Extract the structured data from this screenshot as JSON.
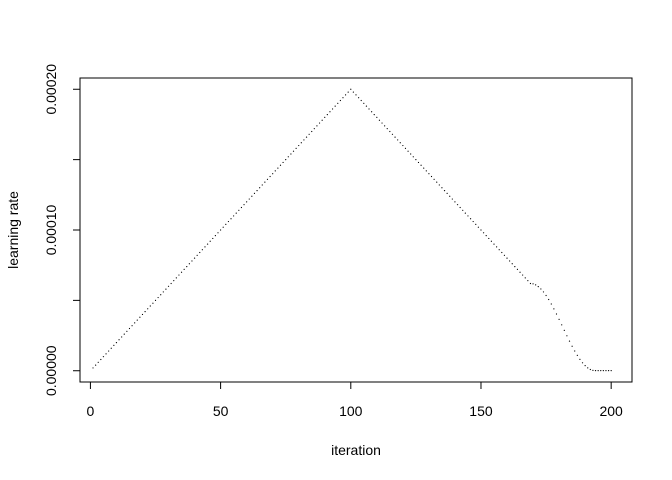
{
  "chart_data": {
    "type": "scatter",
    "title": "",
    "xlabel": "iteration",
    "ylabel": "learning rate",
    "xlim": [
      -4,
      208
    ],
    "ylim": [
      -8e-06,
      0.000208
    ],
    "xticks": [
      0,
      50,
      100,
      150,
      200
    ],
    "xtick_labels": [
      "0",
      "50",
      "100",
      "150",
      "200"
    ],
    "yticks": [
      0,
      0.0001,
      0.0002
    ],
    "ytick_labels": [
      "0.00000",
      "0.00010",
      "0.00020"
    ],
    "ytick_minor": [
      5e-05,
      0.00015
    ],
    "grid": false,
    "legend": "none",
    "point_color": "#000000",
    "series": [
      {
        "x_start": 1,
        "x_end": 200,
        "schedule": [
          {
            "from": 1,
            "to": 100,
            "y_from": 2e-06,
            "y_to": 0.0002,
            "shape": "linear"
          },
          {
            "from": 100,
            "to": 169,
            "y_from": 0.0002,
            "y_to": 6.2e-05,
            "shape": "linear"
          },
          {
            "from": 169,
            "to": 200,
            "y_from": 6.2e-05,
            "y_to": 1e-07,
            "shape": "cosine-decay"
          }
        ]
      }
    ]
  }
}
